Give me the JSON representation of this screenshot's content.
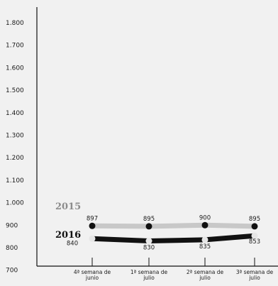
{
  "chart_data": {
    "type": "line",
    "title": "",
    "xlabel": "",
    "ylabel": "",
    "categories": [
      [
        "4ª semana de",
        "junio"
      ],
      [
        "1ª semana de",
        "julio"
      ],
      [
        "2ª semana de",
        "julio"
      ],
      [
        "3ª semana de",
        "julio"
      ]
    ],
    "yticks": [
      "1.800",
      "1.700",
      "1.600",
      "1.500",
      "1.400",
      "1.300",
      "1.200",
      "1.100",
      "1.000",
      "900",
      "800",
      "700"
    ],
    "series": [
      {
        "name": "2015",
        "values": [
          897,
          895,
          900,
          895
        ],
        "labels": [
          "897",
          "895",
          "900",
          "895"
        ],
        "line_color": "#c8c8c8",
        "marker_color": "#111111",
        "label_color": "#8c8c8c"
      },
      {
        "name": "2016",
        "values": [
          840,
          830,
          835,
          853
        ],
        "labels": [
          "840",
          "830",
          "835",
          "853"
        ],
        "line_color": "#111111",
        "marker_color": "#e6e6e6",
        "label_color": "#111111"
      }
    ],
    "grid": false,
    "legend": "inline labels left of lines"
  }
}
